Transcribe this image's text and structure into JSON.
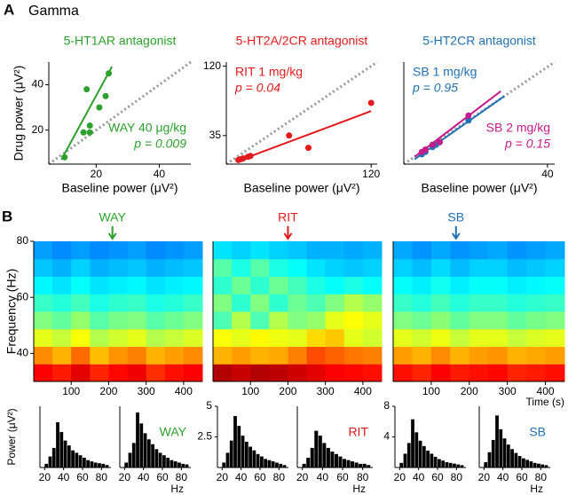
{
  "panel_labels": [
    "A",
    "B"
  ],
  "heading": "Gamma",
  "chart_data": [
    {
      "type": "scatter",
      "title": "5-HT1AR antagonist",
      "xlabel": "Baseline power (μV²)",
      "ylabel": "Drug power (μV²)",
      "xlim": [
        5,
        50
      ],
      "ylim": [
        5,
        50
      ],
      "xticks": [
        20,
        40
      ],
      "yticks": [
        20,
        40
      ],
      "identity_line": true,
      "series": [
        {
          "name": "WAY 40 μg/kg",
          "p_label": "p = 0.009",
          "color": "#2ca02c",
          "x": [
            10,
            16,
            17,
            18,
            18,
            21,
            23,
            24
          ],
          "y": [
            8,
            19,
            38,
            22,
            19,
            30,
            35,
            45
          ],
          "fit": {
            "x": [
              9,
              25
            ],
            "y": [
              7,
              48
            ]
          }
        }
      ]
    },
    {
      "type": "scatter",
      "title": "5-HT2A/2CR antagonist",
      "xlabel": "Baseline power (μV²)",
      "xlim": [
        0,
        125
      ],
      "ylim": [
        0,
        125
      ],
      "xticks": [
        120
      ],
      "yticks": [
        35,
        120
      ],
      "identity_line": true,
      "series": [
        {
          "name": "RIT 1 mg/kg",
          "p_label": "p = 0.04",
          "color": "#e31a1c",
          "x": [
            10,
            12,
            14,
            18,
            20,
            52,
            68,
            120
          ],
          "y": [
            5,
            6,
            7,
            9,
            10,
            35,
            20,
            75
          ],
          "fit": {
            "x": [
              8,
              120
            ],
            "y": [
              3,
              65
            ]
          }
        }
      ]
    },
    {
      "type": "scatter",
      "title": "5-HT2CR antagonist",
      "xlabel": "Baseline power (μV²)",
      "xlim": [
        0,
        42
      ],
      "ylim": [
        0,
        42
      ],
      "xticks": [
        40
      ],
      "identity_line": true,
      "series": [
        {
          "name": "SB 1 mg/kg",
          "p_label": "p = 0.95",
          "color": "#2171b5",
          "x": [
            5,
            6,
            8,
            9,
            18
          ],
          "y": [
            4,
            5,
            7,
            8,
            18
          ],
          "fit": {
            "x": [
              3,
              28
            ],
            "y": [
              2,
              28
            ]
          }
        },
        {
          "name": "SB 2 mg/kg",
          "p_label": "p = 0.15",
          "color": "#c51b8a",
          "x": [
            5,
            6,
            8,
            10,
            18
          ],
          "y": [
            5,
            6,
            8,
            9,
            20
          ],
          "fit": {
            "x": [
              3,
              27
            ],
            "y": [
              3,
              30
            ]
          }
        }
      ]
    },
    {
      "type": "heatmap",
      "ylabel": "Frequency (Hz)",
      "xlim": [
        0,
        450
      ],
      "ylim": [
        30,
        80
      ],
      "xticks": [
        100,
        200,
        300,
        400
      ],
      "yticks": [
        40,
        60,
        80
      ],
      "event_label": "WAY",
      "event_time": 210,
      "event_color": "#2ca02c",
      "values": [
        [
          0.88,
          0.85,
          0.9,
          0.84,
          0.87,
          0.89,
          0.83,
          0.86,
          0.88
        ],
        [
          0.74,
          0.7,
          0.77,
          0.69,
          0.73,
          0.75,
          0.7,
          0.72,
          0.74
        ],
        [
          0.6,
          0.57,
          0.62,
          0.55,
          0.58,
          0.6,
          0.55,
          0.57,
          0.59
        ],
        [
          0.5,
          0.47,
          0.52,
          0.46,
          0.49,
          0.5,
          0.46,
          0.48,
          0.5
        ],
        [
          0.43,
          0.41,
          0.44,
          0.4,
          0.42,
          0.43,
          0.4,
          0.41,
          0.43
        ],
        [
          0.37,
          0.35,
          0.38,
          0.35,
          0.36,
          0.37,
          0.35,
          0.36,
          0.37
        ],
        [
          0.32,
          0.3,
          0.33,
          0.3,
          0.31,
          0.32,
          0.3,
          0.31,
          0.32
        ],
        [
          0.28,
          0.26,
          0.28,
          0.26,
          0.27,
          0.28,
          0.26,
          0.27,
          0.28
        ]
      ]
    },
    {
      "type": "heatmap",
      "xlim": [
        0,
        450
      ],
      "ylim": [
        30,
        80
      ],
      "xticks": [
        100,
        200,
        300,
        400
      ],
      "event_label": "RIT",
      "event_time": 200,
      "event_color": "#e31a1c",
      "values": [
        [
          0.95,
          0.93,
          0.95,
          0.94,
          0.92,
          0.9,
          0.88,
          0.87,
          0.86
        ],
        [
          0.7,
          0.72,
          0.7,
          0.71,
          0.75,
          0.8,
          0.78,
          0.76,
          0.75
        ],
        [
          0.62,
          0.6,
          0.63,
          0.61,
          0.6,
          0.66,
          0.68,
          0.6,
          0.58
        ],
        [
          0.45,
          0.55,
          0.45,
          0.55,
          0.5,
          0.52,
          0.6,
          0.62,
          0.6
        ],
        [
          0.5,
          0.42,
          0.5,
          0.42,
          0.48,
          0.45,
          0.5,
          0.55,
          0.52
        ],
        [
          0.42,
          0.48,
          0.42,
          0.48,
          0.44,
          0.4,
          0.38,
          0.4,
          0.38
        ],
        [
          0.46,
          0.4,
          0.46,
          0.4,
          0.38,
          0.35,
          0.33,
          0.32,
          0.33
        ],
        [
          0.35,
          0.33,
          0.35,
          0.33,
          0.32,
          0.3,
          0.3,
          0.29,
          0.3
        ]
      ]
    },
    {
      "type": "heatmap",
      "xlabel": "Time (s)",
      "xlim": [
        0,
        450
      ],
      "ylim": [
        30,
        80
      ],
      "xticks": [
        100,
        200,
        300,
        400
      ],
      "event_label": "SB",
      "event_time": 165,
      "event_color": "#2171b5",
      "values": [
        [
          0.86,
          0.84,
          0.88,
          0.85,
          0.86,
          0.87,
          0.84,
          0.85,
          0.86
        ],
        [
          0.72,
          0.7,
          0.74,
          0.7,
          0.72,
          0.73,
          0.7,
          0.71,
          0.72
        ],
        [
          0.6,
          0.58,
          0.61,
          0.57,
          0.6,
          0.6,
          0.57,
          0.59,
          0.6
        ],
        [
          0.5,
          0.48,
          0.51,
          0.47,
          0.5,
          0.5,
          0.47,
          0.49,
          0.5
        ],
        [
          0.43,
          0.41,
          0.44,
          0.41,
          0.43,
          0.43,
          0.41,
          0.42,
          0.43
        ],
        [
          0.38,
          0.36,
          0.39,
          0.36,
          0.38,
          0.38,
          0.36,
          0.37,
          0.38
        ],
        [
          0.33,
          0.31,
          0.34,
          0.31,
          0.33,
          0.33,
          0.31,
          0.32,
          0.33
        ],
        [
          0.29,
          0.27,
          0.29,
          0.27,
          0.28,
          0.29,
          0.27,
          0.28,
          0.29
        ]
      ]
    },
    {
      "type": "histogram",
      "ylabel": "Power (μV²)",
      "color": "#000000",
      "xlim": [
        15,
        90
      ],
      "ylim": [
        0,
        5
      ],
      "xticks": [
        20,
        40,
        60,
        80
      ],
      "bins": [
        20,
        24,
        28,
        32,
        36,
        40,
        44,
        48,
        52,
        56,
        60,
        64,
        68,
        72,
        76,
        80,
        84,
        88
      ],
      "values": [
        0.3,
        0.9,
        1.6,
        3.7,
        2.9,
        2.2,
        1.8,
        1.4,
        1.2,
        1.0,
        0.8,
        0.6,
        0.5,
        0.4,
        0.35,
        0.3,
        0.2
      ]
    },
    {
      "type": "histogram",
      "label": "WAY",
      "label_color": "#2ca02c",
      "xlabel": "Hz",
      "color": "#000000",
      "xlim": [
        15,
        90
      ],
      "ylim": [
        0,
        5
      ],
      "xticks": [
        20,
        40,
        60,
        80
      ],
      "bins": [
        20,
        24,
        28,
        32,
        36,
        40,
        44,
        48,
        52,
        56,
        60,
        64,
        68,
        72,
        76,
        80,
        84,
        88
      ],
      "values": [
        0.4,
        1.2,
        2.0,
        4.5,
        3.6,
        2.8,
        2.3,
        1.9,
        1.5,
        1.2,
        1.0,
        0.8,
        0.6,
        0.5,
        0.4,
        0.3,
        0.25
      ]
    },
    {
      "type": "histogram",
      "color": "#000000",
      "xlim": [
        15,
        90
      ],
      "ylim": [
        0,
        5
      ],
      "xticks": [
        20,
        40,
        60,
        80
      ],
      "yticks": [
        2.5,
        5
      ],
      "bins": [
        20,
        24,
        28,
        32,
        36,
        40,
        44,
        48,
        52,
        56,
        60,
        64,
        68,
        72,
        76,
        80,
        84,
        88
      ],
      "values": [
        0.4,
        1.2,
        2.2,
        4.2,
        3.4,
        2.6,
        2.1,
        1.7,
        1.4,
        1.1,
        0.9,
        0.7,
        0.6,
        0.5,
        0.4,
        0.3,
        0.2
      ]
    },
    {
      "type": "histogram",
      "label": "RIT",
      "label_color": "#e31a1c",
      "xlabel": "Hz",
      "color": "#000000",
      "xlim": [
        15,
        90
      ],
      "ylim": [
        0,
        5
      ],
      "xticks": [
        20,
        40,
        60,
        80
      ],
      "bins": [
        20,
        24,
        28,
        32,
        36,
        40,
        44,
        48,
        52,
        56,
        60,
        64,
        68,
        72,
        76,
        80,
        84,
        88
      ],
      "values": [
        0.3,
        0.8,
        1.6,
        3.0,
        2.6,
        2.0,
        1.6,
        1.3,
        1.1,
        0.9,
        0.7,
        0.6,
        0.5,
        0.4,
        0.3,
        0.3,
        0.2
      ]
    },
    {
      "type": "histogram",
      "color": "#000000",
      "xlim": [
        15,
        90
      ],
      "ylim": [
        0,
        8
      ],
      "xticks": [
        20,
        40,
        60,
        80
      ],
      "yticks": [
        4,
        8
      ],
      "bins": [
        20,
        24,
        28,
        32,
        36,
        40,
        44,
        48,
        52,
        56,
        60,
        64,
        68,
        72,
        76,
        80,
        84,
        88
      ],
      "values": [
        0.6,
        1.8,
        3.2,
        6.3,
        4.6,
        3.5,
        2.8,
        2.2,
        1.8,
        1.4,
        1.1,
        0.9,
        0.7,
        0.6,
        0.5,
        0.4,
        0.3
      ]
    },
    {
      "type": "histogram",
      "label": "SB",
      "label_color": "#2171b5",
      "xlabel": "Hz",
      "color": "#000000",
      "xlim": [
        15,
        90
      ],
      "ylim": [
        0,
        8
      ],
      "xticks": [
        20,
        40,
        60,
        80
      ],
      "bins": [
        20,
        24,
        28,
        32,
        36,
        40,
        44,
        48,
        52,
        56,
        60,
        64,
        68,
        72,
        76,
        80,
        84,
        88
      ],
      "values": [
        0.7,
        2.0,
        3.6,
        6.8,
        5.0,
        3.8,
        3.0,
        2.4,
        1.9,
        1.5,
        1.2,
        1.0,
        0.8,
        0.6,
        0.5,
        0.4,
        0.3
      ]
    }
  ]
}
